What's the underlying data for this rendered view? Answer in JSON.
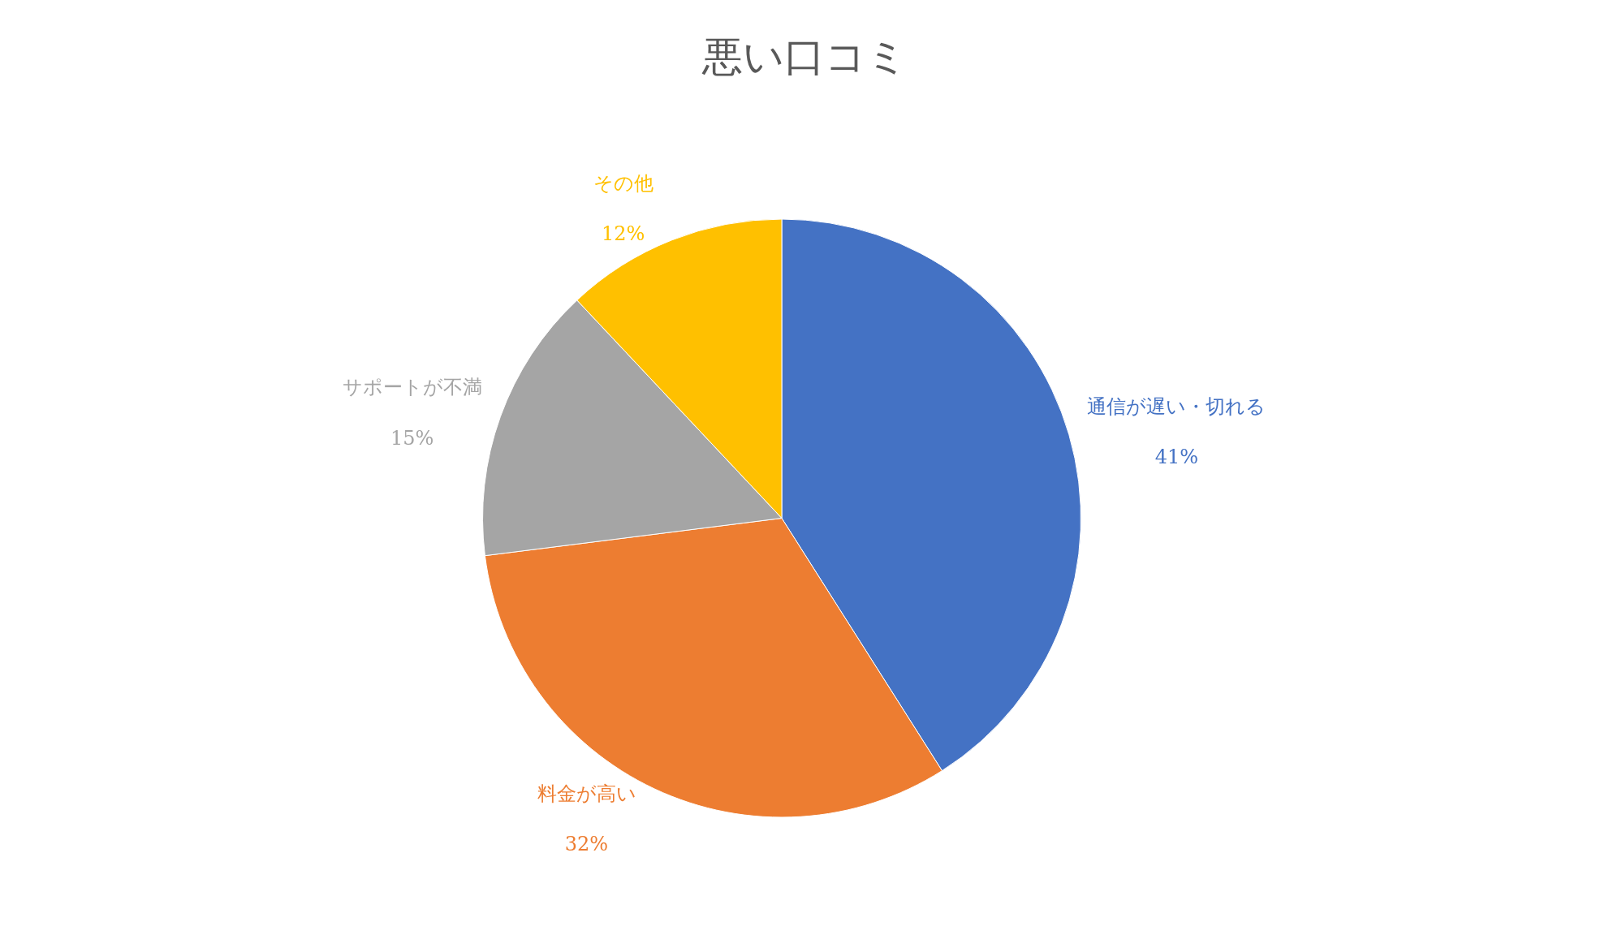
{
  "chart_data": {
    "type": "pie",
    "title": "悪い口コミ",
    "categories": [
      "通信が遅い・切れる",
      "料金が高い",
      "サポートが不満",
      "その他"
    ],
    "values": [
      41,
      32,
      15,
      12
    ],
    "value_labels": [
      "41%",
      "32%",
      "15%",
      "12%"
    ],
    "colors": [
      "#4472c4",
      "#ed7d31",
      "#a5a5a5",
      "#ffc000"
    ],
    "legend": false
  }
}
